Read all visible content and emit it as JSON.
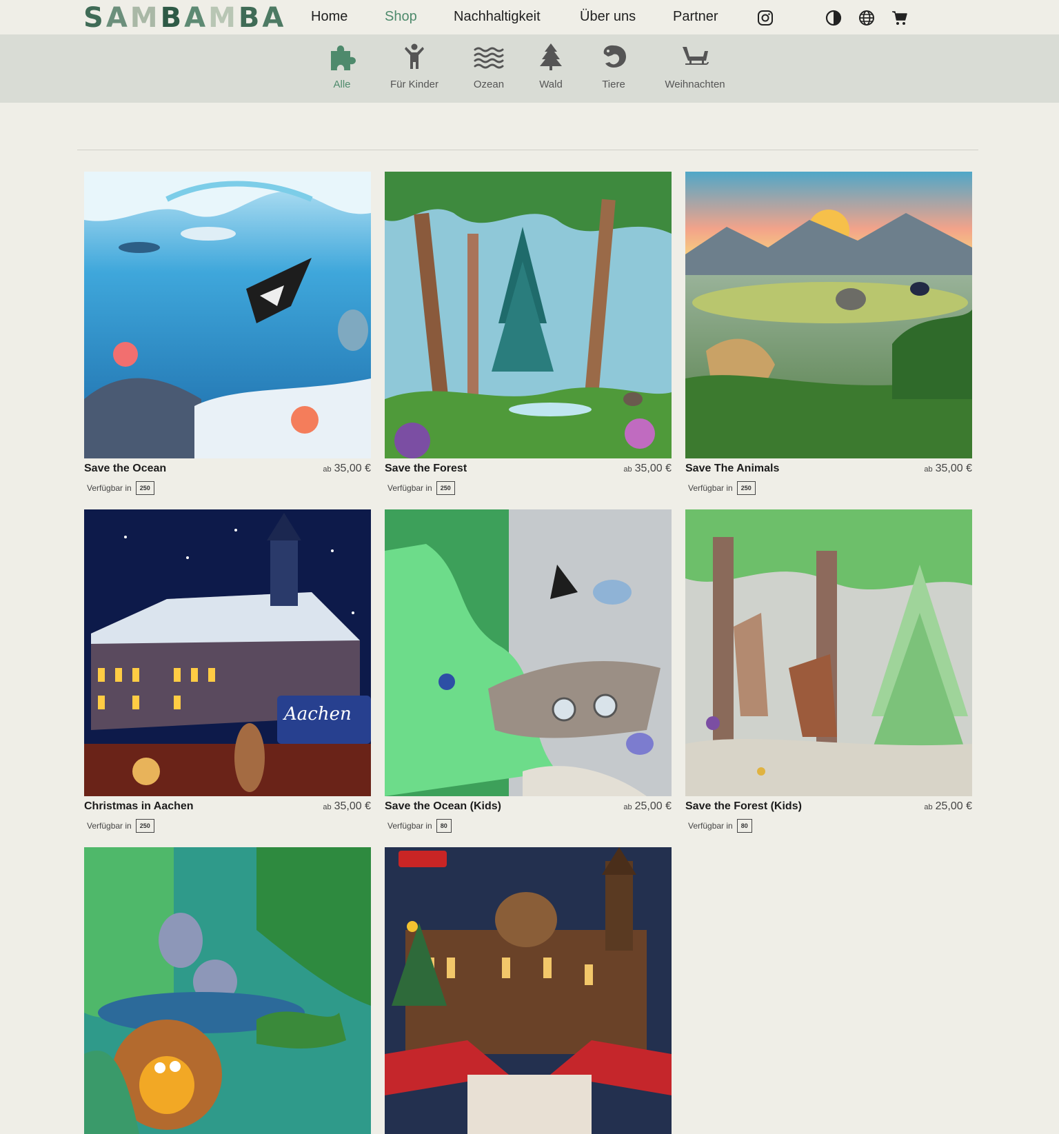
{
  "brand": {
    "name": "SAMBAMBA",
    "letter_colors": [
      "#3f6b56",
      "#6b8f7b",
      "#a9b8a6",
      "#2e5a46",
      "#5d8a73",
      "#b8c6b4",
      "#3f6b56",
      "#4d7a63"
    ]
  },
  "nav": {
    "links": [
      {
        "label": "Home",
        "active": false
      },
      {
        "label": "Shop",
        "active": true
      },
      {
        "label": "Nachhaltigkeit",
        "active": false
      },
      {
        "label": "Über uns",
        "active": false
      },
      {
        "label": "Partner",
        "active": false
      }
    ],
    "icons": [
      "instagram-icon",
      "contrast-icon",
      "globe-icon",
      "cart-icon"
    ]
  },
  "categories": [
    {
      "label": "Alle",
      "icon": "puzzle-icon",
      "active": true
    },
    {
      "label": "Für Kinder",
      "icon": "child-icon",
      "active": false
    },
    {
      "label": "Ozean",
      "icon": "waves-icon",
      "active": false
    },
    {
      "label": "Wald",
      "icon": "tree-icon",
      "active": false
    },
    {
      "label": "Tiere",
      "icon": "animal-icon",
      "active": false
    },
    {
      "label": "Weihnachten",
      "icon": "sleigh-icon",
      "active": false
    }
  ],
  "available_label": "Verfügbar in",
  "price_prefix": "ab",
  "products": [
    {
      "title": "Save the Ocean",
      "price": "35,00 €",
      "pieces": "250",
      "theme": "ocean"
    },
    {
      "title": "Save the Forest",
      "price": "35,00 €",
      "pieces": "250",
      "theme": "forest"
    },
    {
      "title": "Save The Animals",
      "price": "35,00 €",
      "pieces": "250",
      "theme": "savanna"
    },
    {
      "title": "Christmas in Aachen",
      "price": "35,00 €",
      "pieces": "250",
      "theme": "aachen"
    },
    {
      "title": "Save the Ocean (Kids)",
      "price": "25,00 €",
      "pieces": "80",
      "theme": "ocean-kids"
    },
    {
      "title": "Save the Forest (Kids)",
      "price": "25,00 €",
      "pieces": "80",
      "theme": "forest-kids"
    },
    {
      "title": "",
      "price": "",
      "pieces": "",
      "theme": "jungle-kids"
    },
    {
      "title": "",
      "price": "",
      "pieces": "",
      "theme": "cathedral"
    }
  ],
  "colors": {
    "accent": "#4e8a6c",
    "background": "#efeee7",
    "category_bar": "#d9dcd5"
  }
}
